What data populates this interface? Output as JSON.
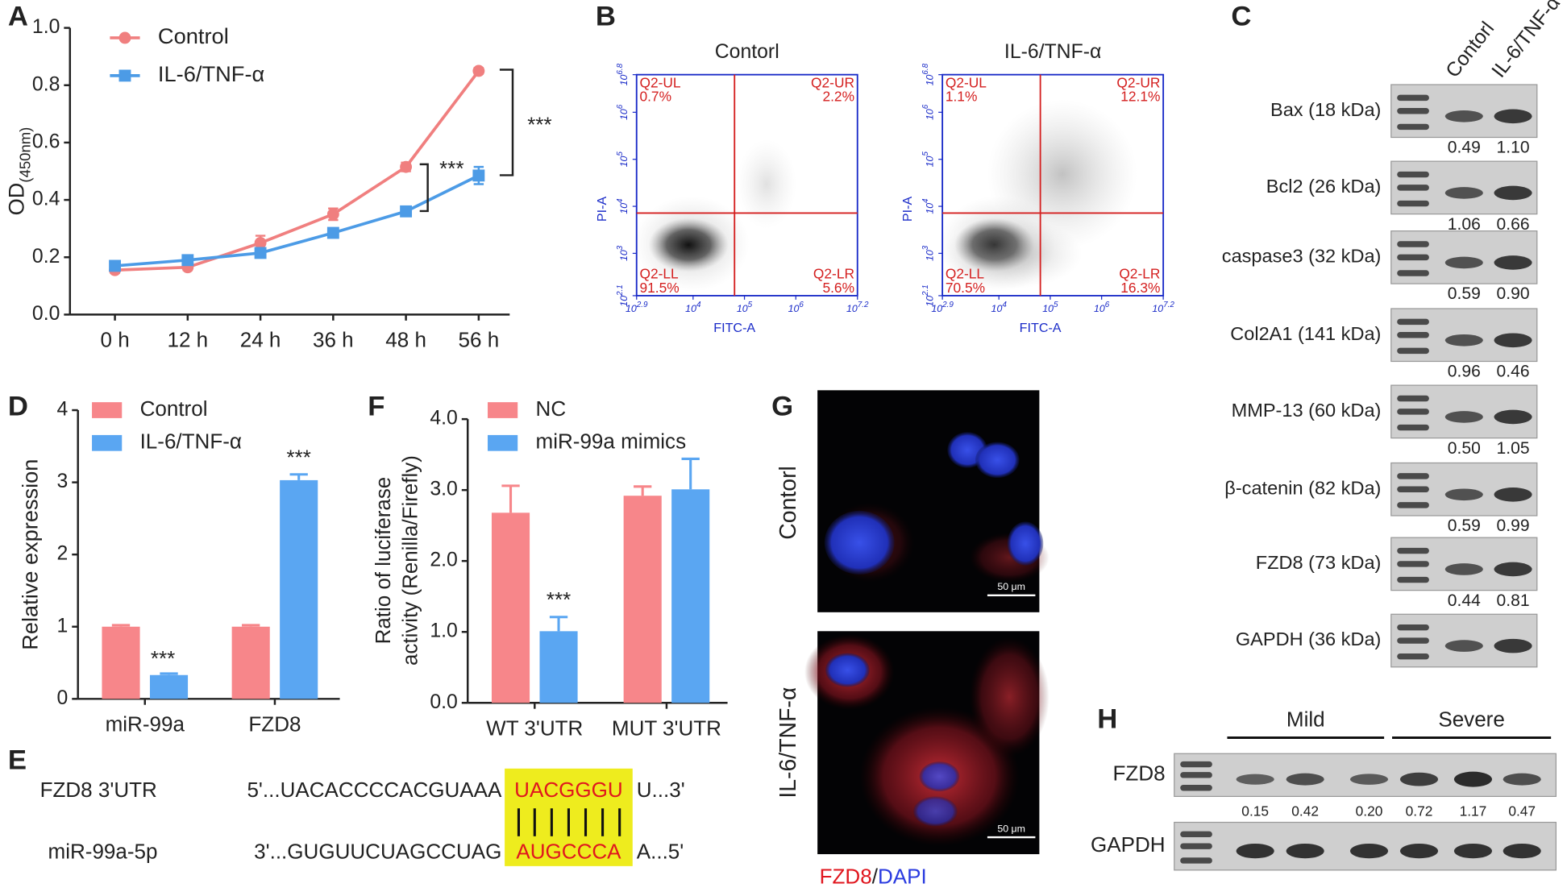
{
  "panel_labels": [
    "A",
    "B",
    "C",
    "D",
    "E",
    "F",
    "G",
    "H"
  ],
  "chart_data": [
    {
      "type": "line",
      "y_label": "OD",
      "y_label_sub": "(450nm)",
      "categories": [
        "0 h",
        "12 h",
        "24 h",
        "36 h",
        "48 h",
        "56 h"
      ],
      "series": [
        {
          "name": "Control",
          "color": "#f07f7f",
          "marker": "circle",
          "values": [
            0.155,
            0.165,
            0.25,
            0.35,
            0.515,
            0.85
          ],
          "errors": [
            0.01,
            0.01,
            0.025,
            0.02,
            0.015,
            0.01
          ]
        },
        {
          "name": "IL-6/TNF-α",
          "color": "#4c9be6",
          "marker": "square",
          "values": [
            0.17,
            0.19,
            0.215,
            0.285,
            0.36,
            0.485
          ],
          "errors": [
            0.01,
            0.01,
            0.015,
            0.015,
            0.015,
            0.03
          ]
        }
      ],
      "ylim": [
        0,
        1
      ],
      "yticks": [
        {
          "value": 0,
          "label": "0.0"
        },
        0.2,
        0.4,
        0.6,
        0.8,
        {
          "value": 1,
          "label": "1.0"
        }
      ],
      "legend": "upper left",
      "annotations": [
        "***",
        "***"
      ]
    },
    {
      "type": "bar",
      "y_label": "Relative expression",
      "categories": [
        "miR-99a",
        "FZD8"
      ],
      "series": [
        {
          "name": "Control",
          "color": "#f7868a",
          "values": [
            1.0,
            1.0
          ],
          "errors": [
            0.02,
            0.02
          ]
        },
        {
          "name": "IL-6/TNF-α",
          "color": "#5aa6f2",
          "values": [
            0.33,
            3.03
          ],
          "errors": [
            0.02,
            0.08
          ]
        }
      ],
      "ylim": [
        0,
        4
      ],
      "yticks": [
        0,
        1,
        2,
        3,
        4
      ],
      "legend": "upper left",
      "annotations": [
        "***",
        "***"
      ]
    },
    {
      "type": "bar",
      "y_label_lines": [
        "Ratio of luciferase",
        "activity (Renilla/Firefly)"
      ],
      "categories": [
        "WT 3'UTR",
        "MUT 3'UTR"
      ],
      "series": [
        {
          "name": "NC",
          "color": "#f7868a",
          "values": [
            2.68,
            2.92
          ],
          "errors": [
            0.38,
            0.13
          ]
        },
        {
          "name": "miR-99a mimics",
          "color": "#5aa6f2",
          "values": [
            1.01,
            3.01
          ],
          "errors": [
            0.2,
            0.43
          ]
        }
      ],
      "ylim": [
        0,
        4
      ],
      "yticks": [
        {
          "value": 0,
          "label": "0.0"
        },
        {
          "value": 1,
          "label": "1.0"
        },
        {
          "value": 2,
          "label": "2.0"
        },
        {
          "value": 3,
          "label": "3.0"
        },
        {
          "value": 4,
          "label": "4.0"
        }
      ],
      "legend": "upper left",
      "annotations": [
        "***"
      ]
    }
  ],
  "flow": {
    "tick_base": "10",
    "x_label": "FITC-A",
    "y_label": "PI-A",
    "x_ticks": [
      "2.9",
      "4",
      "5",
      "6",
      "7.2"
    ],
    "y_ticks": [
      "2.1",
      "3",
      "4",
      "5",
      "6",
      "6.8"
    ],
    "plots": [
      {
        "title": "Contorl",
        "quadrants": [
          [
            "Q2-UL",
            "0.7%"
          ],
          [
            "Q2-UR",
            "2.2%"
          ],
          [
            "Q2-LL",
            "91.5%"
          ],
          [
            "Q2-LR",
            "5.6%"
          ]
        ]
      },
      {
        "title": "IL-6/TNF-α",
        "quadrants": [
          [
            "Q2-UL",
            "1.1%"
          ],
          [
            "Q2-UR",
            "12.1%"
          ],
          [
            "Q2-LL",
            "70.5%"
          ],
          [
            "Q2-LR",
            "16.3%"
          ]
        ]
      }
    ]
  },
  "western": {
    "columns": [
      "Contorl",
      "IL-6/TNF-α"
    ],
    "rows": [
      {
        "label": "Bax (18 kDa)",
        "values": [
          "0.49",
          "1.10"
        ]
      },
      {
        "label": "Bcl2 (26 kDa)",
        "values": [
          "1.06",
          "0.66"
        ]
      },
      {
        "label": "caspase3 (32 kDa)",
        "values": [
          "0.59",
          "0.90"
        ]
      },
      {
        "label": "Col2A1 (141 kDa)",
        "values": [
          "0.96",
          "0.46"
        ]
      },
      {
        "label": "MMP-13 (60 kDa)",
        "values": [
          "0.50",
          "1.05"
        ]
      },
      {
        "label": "β-catenin (82 kDa)",
        "values": [
          "0.59",
          "0.99"
        ]
      },
      {
        "label": "FZD8 (73 kDa)",
        "values": [
          "0.44",
          "0.81"
        ]
      },
      {
        "label": "GAPDH (36 kDa)"
      }
    ]
  },
  "sequence": {
    "rows": [
      {
        "name": "FZD8 3'UTR",
        "left": "5'...UACACCCCACGUAAA",
        "site": "UACGGGU",
        "right": "U...3'"
      },
      {
        "name": "miR-99a-5p",
        "left": "3'...GUGUUCUAGCCUAG",
        "site": "AUGCCCA",
        "right": "A...5'"
      }
    ]
  },
  "imaging": {
    "rows": [
      "Contorl",
      "IL-6/TNF-α"
    ],
    "scale_bar": "50 μm",
    "stain": [
      "FZD8",
      "/",
      "DAPI"
    ]
  },
  "tissue": {
    "groups": [
      "Mild",
      "Severe"
    ],
    "rows": [
      {
        "label": "FZD8",
        "values": [
          "0.15",
          "0.42",
          "0.20",
          "0.72",
          "1.17",
          "0.47"
        ]
      },
      {
        "label": "GAPDH"
      }
    ]
  }
}
